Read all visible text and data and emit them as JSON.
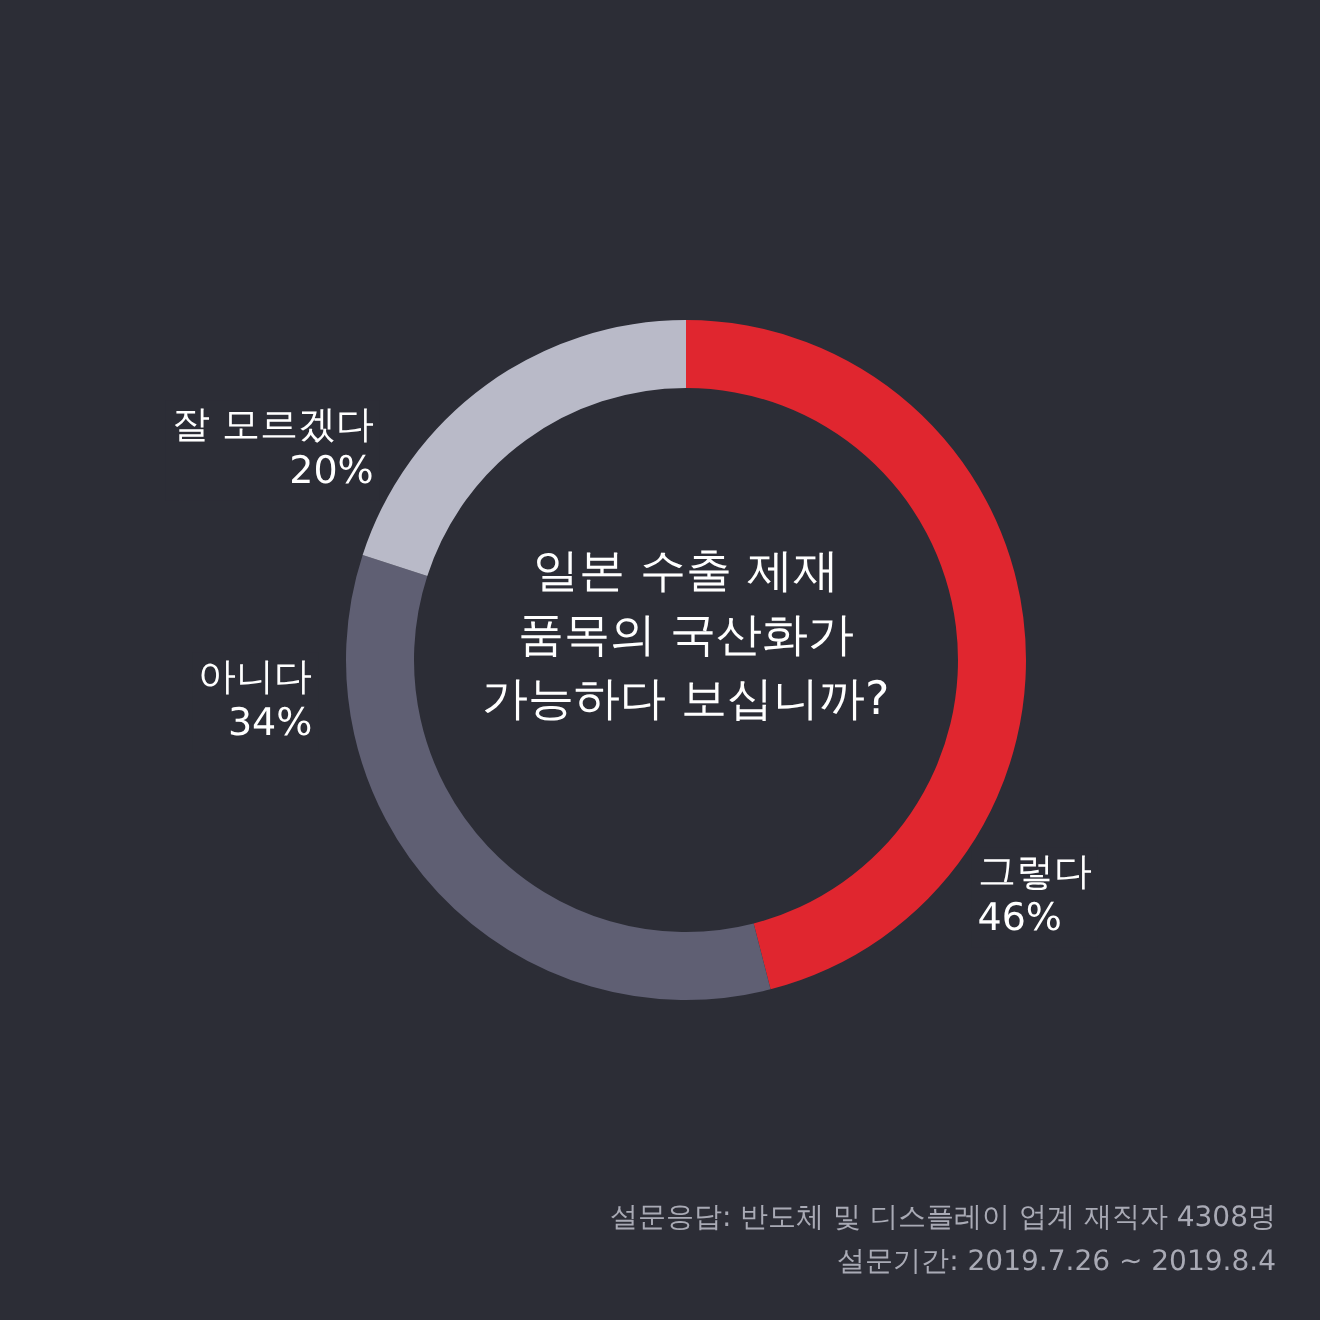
{
  "chart_data": {
    "type": "donut",
    "title": "일본 수출 제재\n품목의 국산화가\n가능하다 보십니까?",
    "categories": [
      "그렇다",
      "아니다",
      "잘 모르겠다"
    ],
    "values": [
      46,
      34,
      20
    ],
    "colors": [
      "#e0262f",
      "#5f5f73",
      "#b9bac8"
    ],
    "value_labels": [
      "46%",
      "34%",
      "20%"
    ],
    "legend": false,
    "annotations": [
      "설문응답: 반도체 및 디스플레이 업계 재직자 4308명",
      "설문기간: 2019.7.26 ~ 2019.8.4"
    ]
  }
}
